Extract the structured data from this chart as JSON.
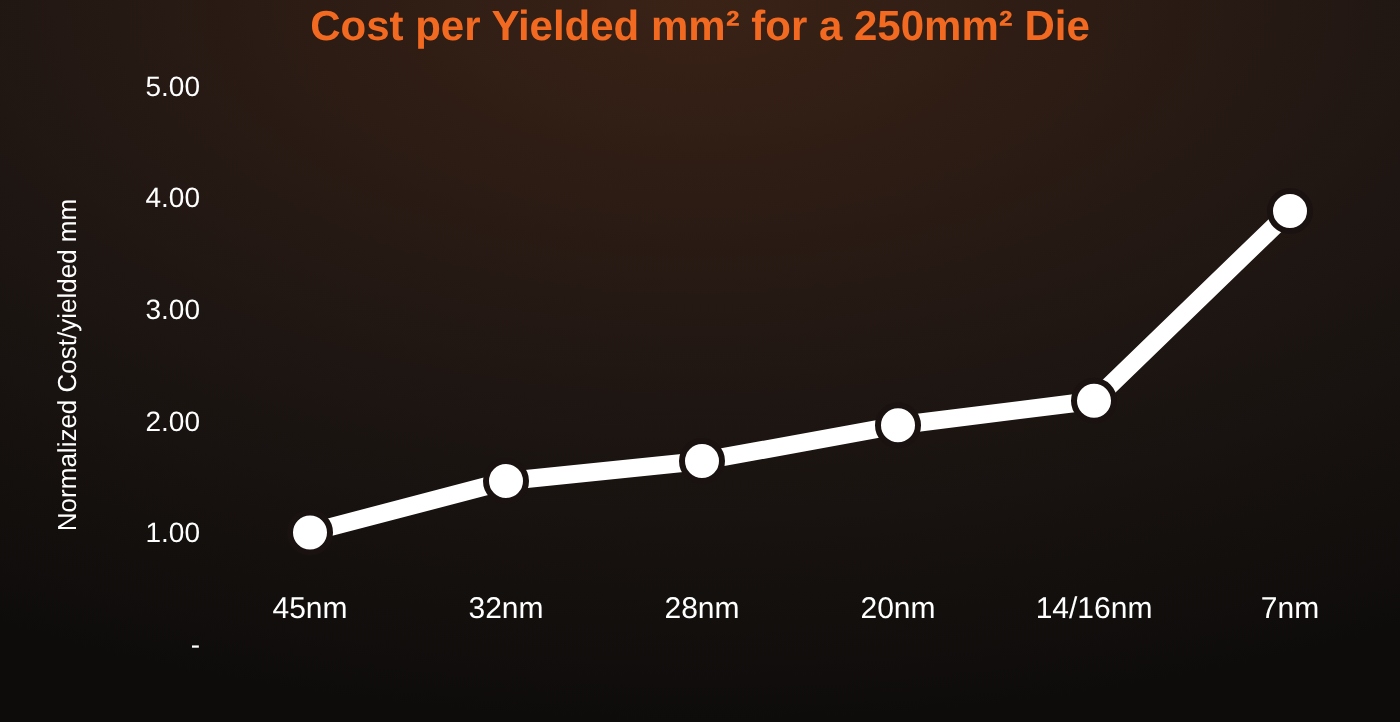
{
  "chart_data": {
    "type": "line",
    "title": "Cost per Yielded mm² for a 250mm² Die",
    "ylabel": "Normalized Cost/yielded mm",
    "categories": [
      "45nm",
      "32nm",
      "28nm",
      "20nm",
      "14/16nm",
      "7nm"
    ],
    "series": [
      {
        "color": "#ffffff",
        "values": [
          1.0,
          1.46,
          1.64,
          1.96,
          2.18,
          3.88
        ]
      }
    ],
    "ylim": [
      0,
      5
    ],
    "yticks": [
      {
        "value": 0,
        "label": "-"
      },
      {
        "value": 1,
        "label": "1.00"
      },
      {
        "value": 2,
        "label": "2.00"
      },
      {
        "value": 3,
        "label": "3.00"
      },
      {
        "value": 4,
        "label": "4.00"
      },
      {
        "value": 5,
        "label": "5.00"
      }
    ],
    "grid": false,
    "marker": "circle",
    "line_style": "solid"
  }
}
